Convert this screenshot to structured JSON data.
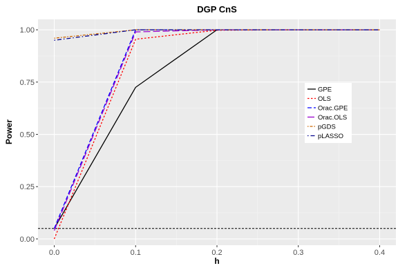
{
  "chart_data": {
    "type": "line",
    "title": "DGP CnS",
    "xlabel": "h",
    "ylabel": "Power",
    "x": [
      0.0,
      0.1,
      0.2,
      0.3,
      0.4
    ],
    "xlim": [
      -0.02,
      0.42
    ],
    "ylim": [
      -0.03,
      1.05
    ],
    "xticks": [
      "0.0",
      "0.1",
      "0.2",
      "0.3",
      "0.4"
    ],
    "xtick_values": [
      0.0,
      0.1,
      0.2,
      0.3,
      0.4
    ],
    "yticks": [
      "0.00",
      "0.25",
      "0.50",
      "0.75",
      "1.00"
    ],
    "ytick_values": [
      0.0,
      0.25,
      0.5,
      0.75,
      1.0
    ],
    "grid": true,
    "legend_position": "right",
    "reference_line": {
      "y": 0.05,
      "style": "dashed",
      "color": "#000000"
    },
    "series": [
      {
        "name": "GPE",
        "values": [
          0.05,
          0.725,
          1.0,
          1.0,
          1.0
        ],
        "color": "#000000",
        "dash": "solid"
      },
      {
        "name": "OLS",
        "values": [
          0.0,
          0.955,
          0.998,
          1.0,
          1.0
        ],
        "color": "#ff0000",
        "dash": "dotted"
      },
      {
        "name": "Orac.GPE",
        "values": [
          0.05,
          1.0,
          1.0,
          1.0,
          1.0
        ],
        "color": "#0000ff",
        "dash": "dashed"
      },
      {
        "name": "Orac.OLS",
        "values": [
          0.04,
          0.99,
          1.0,
          1.0,
          1.0
        ],
        "color": "#9900cc",
        "dash": "longdash"
      },
      {
        "name": "pGDS",
        "values": [
          0.96,
          1.0,
          1.0,
          1.0,
          1.0
        ],
        "color": "#cc6600",
        "dash": "dotdash-fine"
      },
      {
        "name": "pLASSO",
        "values": [
          0.95,
          1.0,
          1.0,
          1.0,
          1.0
        ],
        "color": "#00008b",
        "dash": "dotdash"
      }
    ]
  }
}
